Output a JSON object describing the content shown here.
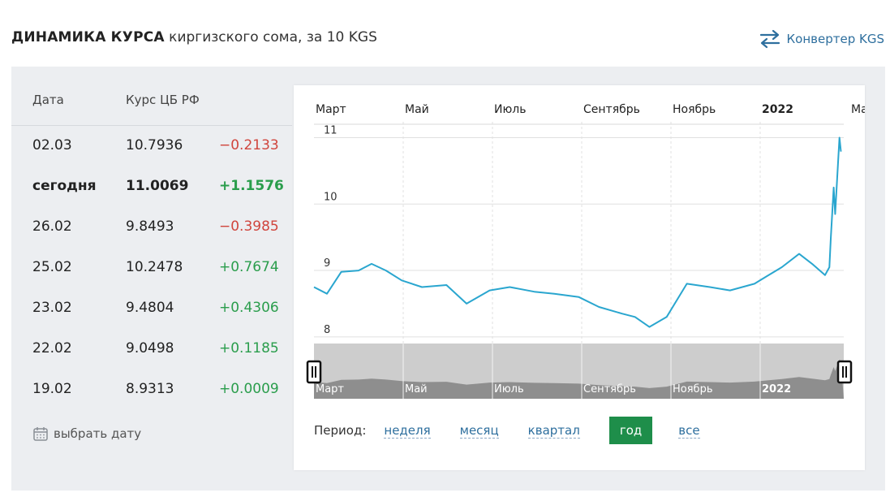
{
  "header": {
    "title": "ДИНАМИКА КУРСА",
    "subtitle": "киргизского сома, за 10 KGS"
  },
  "converter": {
    "label": "Конвертер KGS",
    "icon": "swap-arrows-icon",
    "color": "#2e6f9e"
  },
  "table": {
    "headers": [
      "Дата",
      "Курс ЦБ РФ"
    ],
    "rows": [
      {
        "date": "02.03",
        "rate": "10.7936",
        "change": "−0.2133",
        "trend": "neg"
      },
      {
        "date": "сегодня",
        "rate": "11.0069",
        "change": "+1.1576",
        "trend": "pos"
      },
      {
        "date": "26.02",
        "rate": "9.8493",
        "change": "−0.3985",
        "trend": "neg"
      },
      {
        "date": "25.02",
        "rate": "10.2478",
        "change": "+0.7674",
        "trend": "pos"
      },
      {
        "date": "23.02",
        "rate": "9.4804",
        "change": "+0.4306",
        "trend": "pos"
      },
      {
        "date": "22.02",
        "rate": "9.0498",
        "change": "+0.1185",
        "trend": "pos"
      },
      {
        "date": "19.02",
        "rate": "8.9313",
        "change": "+0.0009",
        "trend": "pos"
      }
    ],
    "neg_color": "#d0453d",
    "pos_color": "#2a9d4c"
  },
  "date_picker": {
    "label": "выбрать дату",
    "icon": "calendar-icon"
  },
  "period": {
    "label": "Период:",
    "options": [
      "неделя",
      "месяц",
      "квартал",
      "год",
      "все"
    ],
    "active": "год",
    "active_color": "#1e8e4a"
  },
  "chart_data": {
    "type": "line",
    "title": "",
    "xlabel": "",
    "ylabel": "",
    "x_tick_labels": [
      "Март",
      "Май",
      "Июль",
      "Сентябрь",
      "Ноябрь",
      "2022",
      "Ма"
    ],
    "y_tick_labels": [
      "8",
      "9",
      "10",
      "11"
    ],
    "ylim": [
      7.9,
      11.3
    ],
    "grid": true,
    "line_color": "#2aa6cf",
    "navigator_labels": [
      "Март",
      "Май",
      "Июль",
      "Сентябрь",
      "Ноябрь",
      "2022"
    ],
    "series": [
      {
        "x": [
          "2021-03-01",
          "2021-03-10",
          "2021-03-20",
          "2021-04-01",
          "2021-04-10",
          "2021-04-20",
          "2021-05-01",
          "2021-05-15",
          "2021-06-01",
          "2021-06-15",
          "2021-07-01",
          "2021-07-15",
          "2021-08-01",
          "2021-08-15",
          "2021-09-01",
          "2021-09-15",
          "2021-10-01",
          "2021-10-10",
          "2021-10-20",
          "2021-11-01",
          "2021-11-15",
          "2021-12-01",
          "2021-12-15",
          "2022-01-01",
          "2022-01-10",
          "2022-01-20",
          "2022-02-01",
          "2022-02-10",
          "2022-02-19",
          "2022-02-22",
          "2022-02-23",
          "2022-02-25",
          "2022-02-26",
          "2022-03-01",
          "2022-03-02"
        ],
        "y": [
          8.75,
          8.65,
          8.98,
          9.0,
          9.1,
          9.0,
          8.85,
          8.75,
          8.78,
          8.5,
          8.7,
          8.75,
          8.68,
          8.65,
          8.6,
          8.45,
          8.35,
          8.3,
          8.15,
          8.3,
          8.8,
          8.75,
          8.7,
          8.8,
          8.92,
          9.05,
          9.25,
          9.1,
          8.93,
          9.05,
          9.48,
          10.25,
          9.85,
          11.0,
          10.79
        ]
      }
    ]
  }
}
